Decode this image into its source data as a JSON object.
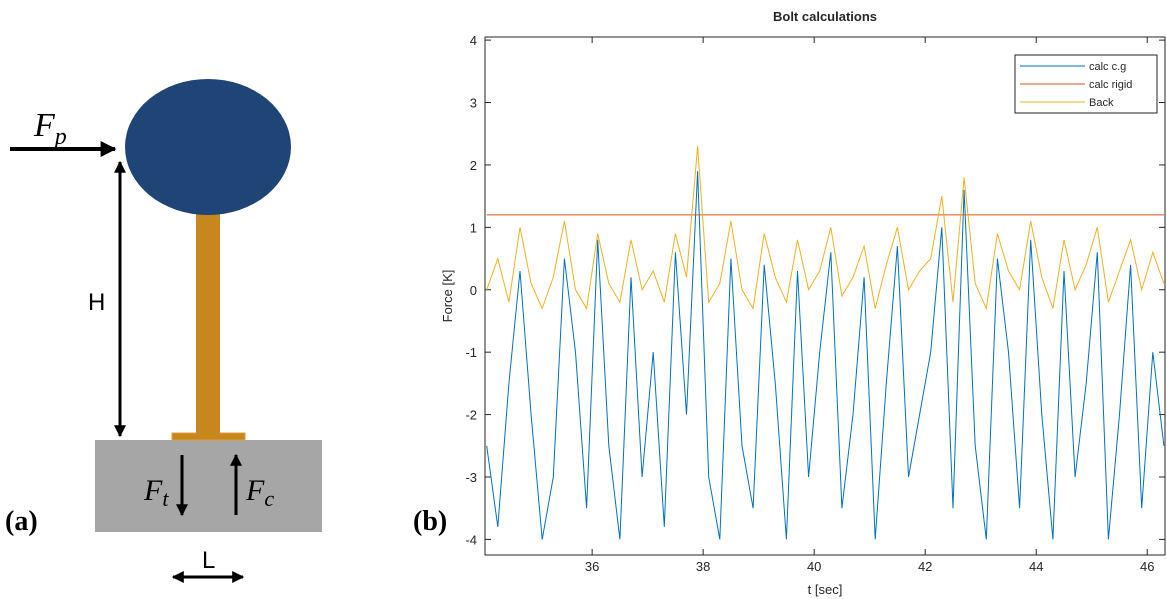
{
  "diagram": {
    "panel_label": "(a)",
    "height_label": "H",
    "length_label": "L",
    "push_force": {
      "symbol": "F",
      "subscript": "p"
    },
    "tension_force": {
      "symbol": "F",
      "subscript": "t"
    },
    "compression_force": {
      "symbol": "F",
      "subscript": "c"
    }
  },
  "chart_panel_label": "(b)",
  "chart_data": {
    "type": "line",
    "title": "Bolt calculations",
    "x_label": "t [sec]",
    "y_label": "Force [K]",
    "x": [
      34.1,
      34.3,
      34.5,
      34.7,
      34.9,
      35.1,
      35.3,
      35.5,
      35.7,
      35.9,
      36.1,
      36.3,
      36.5,
      36.7,
      36.9,
      37.1,
      37.3,
      37.5,
      37.7,
      37.9,
      38.1,
      38.3,
      38.5,
      38.7,
      38.9,
      39.1,
      39.3,
      39.5,
      39.7,
      39.9,
      40.1,
      40.3,
      40.5,
      40.7,
      40.9,
      41.1,
      41.3,
      41.5,
      41.7,
      41.9,
      42.1,
      42.3,
      42.5,
      42.7,
      42.9,
      43.1,
      43.3,
      43.5,
      43.7,
      43.9,
      44.1,
      44.3,
      44.5,
      44.7,
      44.9,
      45.1,
      45.3,
      45.5,
      45.7,
      45.9,
      46.1,
      46.3
    ],
    "series": [
      {
        "name": "calc c.g",
        "color": "#0072bd",
        "values": [
          -2.5,
          -3.8,
          -1.5,
          0.3,
          -2,
          -4,
          -3,
          0.5,
          -1,
          -3.5,
          0.8,
          -2.5,
          -4,
          0.2,
          -3,
          -1,
          -3.8,
          0.6,
          -2,
          1.9,
          -3,
          -4,
          0.5,
          -2.5,
          -3.5,
          0.4,
          -1.5,
          -4,
          0.3,
          -3,
          -1,
          0.6,
          -3.5,
          -2,
          0.2,
          -4,
          -1.5,
          0.7,
          -3,
          -2,
          -1,
          1.0,
          -3.5,
          1.6,
          -2.5,
          -4,
          0.5,
          -1,
          -3.5,
          0.8,
          -2,
          -4,
          0.3,
          -3,
          -1.5,
          0.6,
          -4,
          -2,
          0.4,
          -3.5,
          -1,
          -2.5
        ]
      },
      {
        "name": "calc rigid",
        "color": "#d95319",
        "values": [
          1.2,
          1.2,
          1.2,
          1.2,
          1.2,
          1.2,
          1.2,
          1.2,
          1.2,
          1.2,
          1.2,
          1.2,
          1.2,
          1.2,
          1.2,
          1.2,
          1.2,
          1.2,
          1.2,
          1.2,
          1.2,
          1.2,
          1.2,
          1.2,
          1.2,
          1.2,
          1.2,
          1.2,
          1.2,
          1.2,
          1.2,
          1.2,
          1.2,
          1.2,
          1.2,
          1.2,
          1.2,
          1.2,
          1.2,
          1.2,
          1.2,
          1.2,
          1.2,
          1.2,
          1.2,
          1.2,
          1.2,
          1.2,
          1.2,
          1.2,
          1.2,
          1.2,
          1.2,
          1.2,
          1.2,
          1.2,
          1.2,
          1.2,
          1.2,
          1.2,
          1.2,
          1.2
        ]
      },
      {
        "name": "Back",
        "color": "#edb120",
        "values": [
          0,
          0.5,
          -0.2,
          1.0,
          0.1,
          -0.3,
          0.2,
          1.1,
          0,
          -0.3,
          0.9,
          0.1,
          -0.2,
          0.8,
          0,
          0.3,
          -0.2,
          0.9,
          0.2,
          2.3,
          -0.2,
          0.1,
          1.1,
          0,
          -0.3,
          0.9,
          0.2,
          -0.2,
          0.8,
          0,
          0.3,
          1.0,
          -0.1,
          0.2,
          0.7,
          -0.3,
          0.4,
          1.0,
          0,
          0.3,
          0.5,
          1.5,
          -0.2,
          1.8,
          0.1,
          -0.3,
          0.9,
          0.3,
          0,
          1.1,
          0.2,
          -0.3,
          0.8,
          0,
          0.4,
          1.0,
          -0.2,
          0.3,
          0.8,
          0,
          0.6,
          0.1
        ]
      }
    ],
    "xlim": [
      34.07,
      46.32
    ],
    "xticks": [
      36,
      38,
      40,
      42,
      44,
      46
    ],
    "ylim": [
      -4.25,
      4.05
    ],
    "yticks": [
      -4,
      -3,
      -2,
      -1,
      0,
      1,
      2,
      3,
      4
    ],
    "grid": false,
    "legend": "top-right"
  }
}
